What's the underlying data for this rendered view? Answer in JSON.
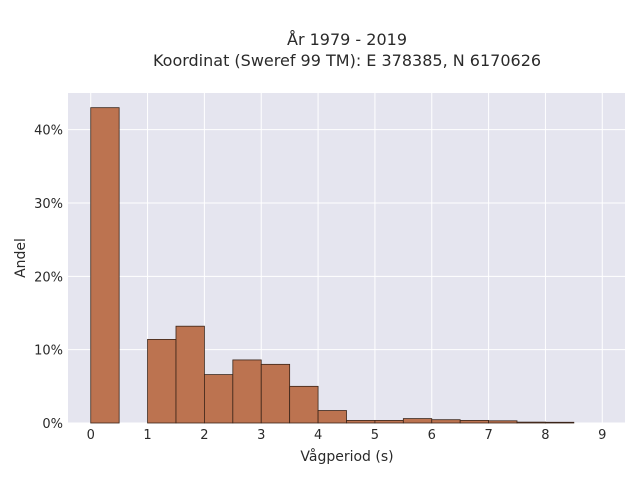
{
  "chart_data": {
    "type": "bar",
    "title_line1": "År 1979 - 2019",
    "title_line2": "Koordinat (Sweref 99 TM): E 378385, N 6170626",
    "xlabel": "Vågperiod (s)",
    "ylabel": "Andel",
    "xlim": [
      -0.4,
      9.4
    ],
    "ylim": [
      0,
      45
    ],
    "x_ticks": [
      0,
      1,
      2,
      3,
      4,
      5,
      6,
      7,
      8,
      9
    ],
    "y_ticks": [
      0,
      10,
      20,
      30,
      40
    ],
    "y_tick_labels": [
      "0%",
      "10%",
      "20%",
      "30%",
      "40%"
    ],
    "bar_width": 0.5,
    "bars": [
      {
        "x": 0.0,
        "value": 43.0
      },
      {
        "x": 1.0,
        "value": 11.4
      },
      {
        "x": 1.5,
        "value": 13.2
      },
      {
        "x": 2.0,
        "value": 6.6
      },
      {
        "x": 2.5,
        "value": 8.6
      },
      {
        "x": 3.0,
        "value": 8.0
      },
      {
        "x": 3.5,
        "value": 5.0
      },
      {
        "x": 4.0,
        "value": 1.7
      },
      {
        "x": 4.5,
        "value": 0.35
      },
      {
        "x": 5.0,
        "value": 0.35
      },
      {
        "x": 5.5,
        "value": 0.6
      },
      {
        "x": 6.0,
        "value": 0.45
      },
      {
        "x": 6.5,
        "value": 0.35
      },
      {
        "x": 7.0,
        "value": 0.3
      },
      {
        "x": 7.5,
        "value": 0.12
      },
      {
        "x": 8.0,
        "value": 0.1
      }
    ],
    "bar_color": "#bc7350",
    "bar_edge_color": "#3a2418",
    "plot_bg": "#e5e5ef",
    "grid": true,
    "grid_color": "#ffffff"
  }
}
